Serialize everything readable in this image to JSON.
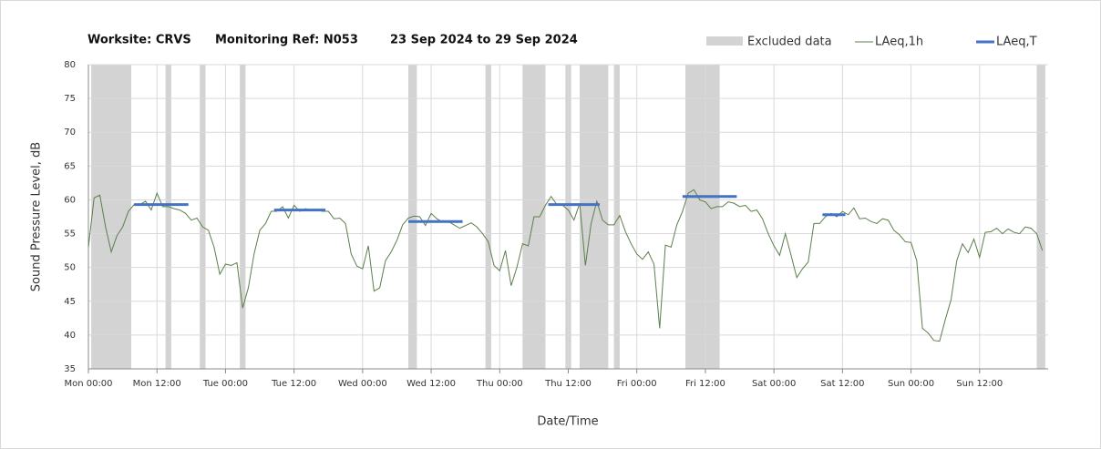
{
  "chart_data": {
    "type": "line",
    "title_parts": [
      "Worksite: CRVS",
      "Monitoring Ref: N053",
      "23 Sep 2024 to 29 Sep 2024"
    ],
    "xlabel": "Date/Time",
    "ylabel": "Sound Pressure Level, dB",
    "xlim": [
      0,
      168
    ],
    "ylim": [
      35,
      80
    ],
    "yticks": [
      35,
      40,
      45,
      50,
      55,
      60,
      65,
      70,
      75,
      80
    ],
    "xticks": [
      {
        "value": 0,
        "label": "Mon 00:00"
      },
      {
        "value": 12,
        "label": "Mon 12:00"
      },
      {
        "value": 24,
        "label": "Tue 00:00"
      },
      {
        "value": 36,
        "label": "Tue 12:00"
      },
      {
        "value": 48,
        "label": "Wed 00:00"
      },
      {
        "value": 60,
        "label": "Wed 12:00"
      },
      {
        "value": 72,
        "label": "Thu 00:00"
      },
      {
        "value": 84,
        "label": "Thu 12:00"
      },
      {
        "value": 96,
        "label": "Fri 00:00"
      },
      {
        "value": 108,
        "label": "Fri 12:00"
      },
      {
        "value": 120,
        "label": "Sat 00:00"
      },
      {
        "value": 132,
        "label": "Sat 12:00"
      },
      {
        "value": 144,
        "label": "Sun 00:00"
      },
      {
        "value": 156,
        "label": "Sun 12:00"
      }
    ],
    "grid": true,
    "excluded": {
      "name": "Excluded data",
      "color": "#d3d3d3",
      "ranges": [
        [
          0.5,
          7.5
        ],
        [
          13.5,
          14.5
        ],
        [
          19.5,
          20.5
        ],
        [
          26.5,
          27.5
        ],
        [
          56,
          57.5
        ],
        [
          69.5,
          70.5
        ],
        [
          76,
          80
        ],
        [
          83.5,
          84.5
        ],
        [
          86,
          91
        ],
        [
          92,
          93
        ],
        [
          104.5,
          110.5
        ],
        [
          166,
          167.5
        ]
      ]
    },
    "series": [
      {
        "name": "LAeq,1h",
        "color": "#5b7f4b",
        "x": [
          0,
          1,
          2,
          3,
          4,
          5,
          6,
          7,
          8,
          9,
          10,
          11,
          12,
          13,
          14,
          15,
          16,
          17,
          18,
          19,
          20,
          21,
          22,
          23,
          24,
          25,
          26,
          27,
          28,
          29,
          30,
          31,
          32,
          33,
          34,
          35,
          36,
          37,
          38,
          39,
          40,
          41,
          42,
          43,
          44,
          45,
          46,
          47,
          48,
          49,
          50,
          51,
          52,
          53,
          54,
          55,
          56,
          57,
          58,
          59,
          60,
          61,
          62,
          63,
          64,
          65,
          66,
          67,
          68,
          69,
          70,
          71,
          72,
          73,
          74,
          75,
          76,
          77,
          78,
          79,
          80,
          81,
          82,
          83,
          84,
          85,
          86,
          87,
          88,
          89,
          90,
          91,
          92,
          93,
          94,
          95,
          96,
          97,
          98,
          99,
          100,
          101,
          102,
          103,
          104,
          105,
          106,
          107,
          108,
          109,
          110,
          111,
          112,
          113,
          114,
          115,
          116,
          117,
          118,
          119,
          120,
          121,
          122,
          123,
          124,
          125,
          126,
          127,
          128,
          129,
          130,
          131,
          132,
          133,
          134,
          135,
          136,
          137,
          138,
          139,
          140,
          141,
          142,
          143,
          144,
          145,
          146,
          147,
          148,
          149,
          150,
          151,
          152,
          153,
          154,
          155,
          156,
          157,
          158,
          159,
          160,
          161,
          162,
          163,
          164,
          165,
          166,
          167
        ],
        "values": [
          53,
          60.3,
          60.7,
          56,
          52.3,
          54.7,
          56,
          58.3,
          59.3,
          59.3,
          59.8,
          58.5,
          61,
          59,
          59,
          58.7,
          58.5,
          58,
          57,
          57.3,
          56,
          55.5,
          53,
          49,
          50.5,
          50.3,
          50.7,
          44,
          47,
          52,
          55.5,
          56.5,
          58.3,
          58.3,
          59,
          57.3,
          59.2,
          58.3,
          58.7,
          58.5,
          58.5,
          58.3,
          58.3,
          57.2,
          57.3,
          56.5,
          52,
          50.2,
          49.8,
          53.2,
          46.5,
          47,
          51,
          52.3,
          54,
          56.3,
          57.3,
          57.6,
          57.5,
          56.2,
          58,
          57.2,
          56.7,
          56.8,
          56.3,
          55.8,
          56.2,
          56.6,
          56,
          55,
          53.8,
          50.3,
          49.5,
          52.5,
          47.3,
          50,
          53.5,
          53.2,
          57.5,
          57.5,
          59.2,
          60.5,
          59.3,
          59.2,
          58.5,
          57,
          59.5,
          50.3,
          56.5,
          59.8,
          57,
          56.3,
          56.3,
          57.7,
          55.3,
          53.5,
          52,
          51.2,
          52.3,
          50.5,
          41,
          53.3,
          53,
          56.3,
          58.3,
          61,
          61.5,
          60,
          59.7,
          58.7,
          59,
          59,
          59.7,
          59.5,
          59,
          59.2,
          58.3,
          58.5,
          57.2,
          55,
          53.2,
          51.8,
          55,
          51.8,
          48.5,
          49.8,
          50.8,
          56.5,
          56.5,
          57.5,
          58,
          57.5,
          58.3,
          57.8,
          58.8,
          57.2,
          57.3,
          56.8,
          56.5,
          57.2,
          57,
          55.5,
          54.8,
          53.8,
          53.7,
          51,
          41,
          40.3,
          39.2,
          39.1,
          42.3,
          45.2,
          51,
          53.5,
          52.2,
          54.2,
          51.5,
          55.2,
          55.3,
          55.8,
          55,
          55.7,
          55.2,
          55,
          56,
          55.8,
          55,
          52.5
        ]
      },
      {
        "name": "LAeq,T",
        "color": "#4472c4",
        "ranges": [
          [
            8,
            17.5
          ],
          [
            32.5,
            41.5
          ],
          [
            56,
            65.5
          ],
          [
            80.5,
            89.5
          ],
          [
            104,
            113.5
          ],
          [
            128.5,
            132.5
          ]
        ],
        "values": [
          59.3,
          58.5,
          56.8,
          59.3,
          60.5,
          57.8
        ]
      }
    ]
  }
}
